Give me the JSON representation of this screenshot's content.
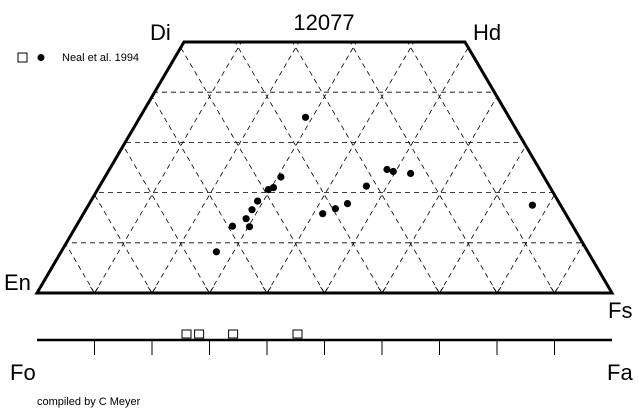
{
  "chart_data": [
    {
      "type": "scatter",
      "subtype": "pyroxene-quadrilateral",
      "title": "12077",
      "corners": {
        "top_left": "Di",
        "top_right": "Hd",
        "bottom_left": "En",
        "bottom_right": "Fs"
      },
      "axes": {
        "fs_range": [
          0,
          100
        ],
        "wo_range": [
          0,
          50
        ],
        "grid": true,
        "grid_step_percent": 10
      },
      "legend": {
        "position": "top-left",
        "entries": [
          "Neal et al. 1994"
        ]
      },
      "series": [
        {
          "name": "Neal et al. 1994",
          "marker": "filled-circle",
          "points": [
            {
              "fs": 28.8,
              "wo": 35.0
            },
            {
              "fs": 48.3,
              "wo": 24.6
            },
            {
              "fs": 49.6,
              "wo": 24.2
            },
            {
              "fs": 52.8,
              "wo": 23.8
            },
            {
              "fs": 30.6,
              "wo": 23.1
            },
            {
              "fs": 46.4,
              "wo": 21.3
            },
            {
              "fs": 30.4,
              "wo": 21.0
            },
            {
              "fs": 29.7,
              "wo": 20.6
            },
            {
              "fs": 29.0,
              "wo": 18.3
            },
            {
              "fs": 44.9,
              "wo": 17.8
            },
            {
              "fs": 43.3,
              "wo": 16.8
            },
            {
              "fs": 28.9,
              "wo": 16.6
            },
            {
              "fs": 41.6,
              "wo": 15.8
            },
            {
              "fs": 28.8,
              "wo": 14.8
            },
            {
              "fs": 77.2,
              "wo": 17.5
            },
            {
              "fs": 27.2,
              "wo": 13.3
            },
            {
              "fs": 30.2,
              "wo": 13.2
            },
            {
              "fs": 27.0,
              "wo": 8.2
            }
          ]
        }
      ]
    },
    {
      "type": "scatter",
      "subtype": "olivine-bar",
      "axis_labels": {
        "left": "Fo",
        "right": "Fa"
      },
      "axis_range": [
        0,
        100
      ],
      "tick_step": 10,
      "series": [
        {
          "name": "Neal et al. 1994",
          "marker": "open-square",
          "values": [
            26.0,
            28.2,
            34.1,
            45.3
          ]
        }
      ]
    }
  ],
  "legend": {
    "label": "Neal et al. 1994",
    "markers": [
      "open-square",
      "filled-circle"
    ]
  },
  "credit": "compiled by C Meyer"
}
